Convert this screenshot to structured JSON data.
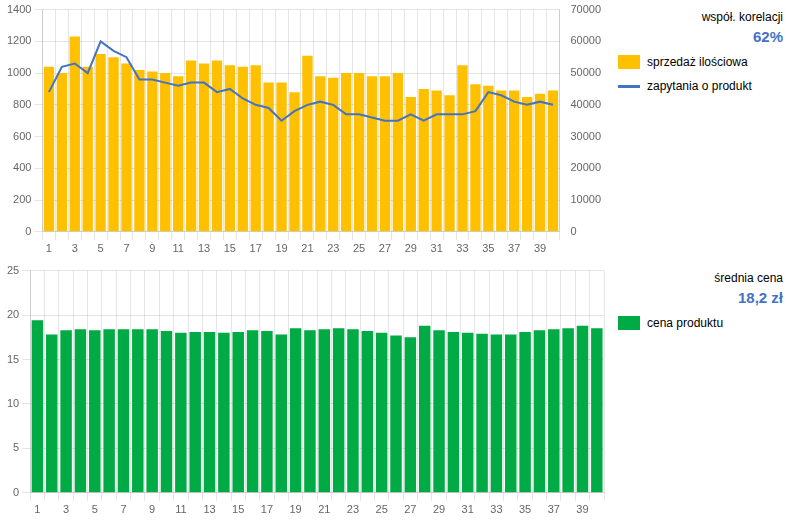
{
  "chart_data": [
    {
      "type": "bar",
      "categories": [
        "1",
        null,
        "3",
        null,
        "5",
        null,
        "7",
        null,
        "9",
        null,
        "11",
        null,
        "13",
        null,
        "15",
        null,
        "17",
        null,
        "19",
        null,
        "21",
        null,
        "23",
        null,
        "25",
        null,
        "27",
        null,
        "29",
        null,
        "31",
        null,
        "33",
        null,
        "35",
        null,
        "37",
        null,
        "39",
        null
      ],
      "series": [
        {
          "name": "sprzedaż ilościowa",
          "type": "bar",
          "color": "#FFC000",
          "values": [
            1040,
            1000,
            1230,
            1040,
            1120,
            1100,
            1060,
            1020,
            1010,
            1000,
            980,
            1080,
            1060,
            1080,
            1050,
            1040,
            1050,
            940,
            940,
            880,
            1110,
            980,
            970,
            1000,
            1000,
            980,
            980,
            1000,
            850,
            900,
            890,
            860,
            1050,
            930,
            920,
            890,
            890,
            850,
            870,
            890
          ]
        },
        {
          "name": "zapytania o produkt",
          "type": "line",
          "color": "#4472C4",
          "axis": "y2",
          "values": [
            44000,
            52000,
            53000,
            50000,
            60000,
            57000,
            55000,
            48000,
            48000,
            47000,
            46000,
            47000,
            47000,
            44000,
            45000,
            42000,
            40000,
            39000,
            35000,
            38000,
            40000,
            41000,
            40000,
            37000,
            37000,
            36000,
            35000,
            35000,
            37000,
            35000,
            37000,
            37000,
            37000,
            38000,
            44000,
            43000,
            41000,
            40000,
            41000,
            40000
          ]
        }
      ],
      "ylim": [
        0,
        1400
      ],
      "yticks": [
        0,
        200,
        400,
        600,
        800,
        1000,
        1200,
        1400
      ],
      "y2lim": [
        0,
        70000
      ],
      "y2ticks": [
        0,
        10000,
        20000,
        30000,
        40000,
        50000,
        60000,
        70000
      ],
      "grid": true,
      "legend": "right",
      "annotations": [
        {
          "text": "współ. korelacji"
        },
        {
          "text": "62%",
          "color": "#4472C4"
        }
      ]
    },
    {
      "type": "bar",
      "categories": [
        "1",
        null,
        "3",
        null,
        "5",
        null,
        "7",
        null,
        "9",
        null,
        "11",
        null,
        "13",
        null,
        "15",
        null,
        "17",
        null,
        "19",
        null,
        "21",
        null,
        "23",
        null,
        "25",
        null,
        "27",
        null,
        "29",
        null,
        "31",
        null,
        "33",
        null,
        "35",
        null,
        "37",
        null,
        "39",
        null
      ],
      "series": [
        {
          "name": "cena produktu",
          "type": "bar",
          "color": "#00AA44",
          "values": [
            19.4,
            17.8,
            18.3,
            18.4,
            18.3,
            18.4,
            18.4,
            18.4,
            18.4,
            18.2,
            18.0,
            18.1,
            18.1,
            18.0,
            18.1,
            18.3,
            18.2,
            17.8,
            18.5,
            18.3,
            18.4,
            18.5,
            18.4,
            18.2,
            18.0,
            17.7,
            17.5,
            18.8,
            18.3,
            18.1,
            18.0,
            17.9,
            17.8,
            17.8,
            18.1,
            18.3,
            18.4,
            18.5,
            18.8,
            18.5
          ]
        }
      ],
      "ylim": [
        0,
        25
      ],
      "yticks": [
        0,
        5,
        10,
        15,
        20,
        25
      ],
      "grid": true,
      "legend": "right",
      "annotations": [
        {
          "text": "średnia cena"
        },
        {
          "text": "18,2 zł",
          "color": "#4472C4"
        }
      ]
    }
  ]
}
